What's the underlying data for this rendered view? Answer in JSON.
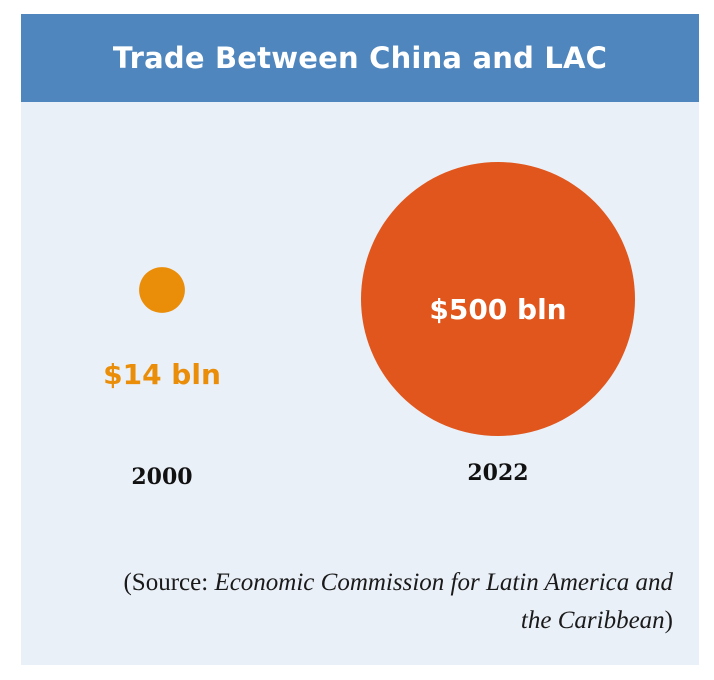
{
  "header": {
    "title": "Trade Between China and LAC"
  },
  "chart_data": {
    "type": "bubble",
    "title": "Trade Between China and LAC",
    "unit": "bln USD",
    "points": [
      {
        "x": "2000",
        "value": 14,
        "label": "$14 bln",
        "color": "#ea8e0a"
      },
      {
        "x": "2022",
        "value": 500,
        "label": "$500 bln",
        "color": "#e0561c"
      }
    ]
  },
  "source": {
    "prefix": "(Source: ",
    "name": "Economic Commission for Latin America and the Caribbean",
    "suffix": ")"
  }
}
